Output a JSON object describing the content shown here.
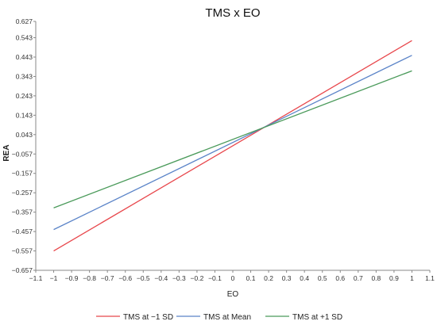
{
  "chart_data": {
    "type": "line",
    "title": "TMS x EO",
    "xlabel": "EO",
    "ylabel": "REA",
    "xlim": [
      -1.1,
      1.1
    ],
    "ylim": [
      -0.657,
      0.627
    ],
    "x_ticks": [
      -1.1,
      -1,
      -0.9,
      -0.8,
      -0.7,
      -0.6,
      -0.5,
      -0.4,
      -0.3,
      -0.2,
      -0.1,
      0,
      0.1,
      0.2,
      0.3,
      0.4,
      0.5,
      0.6,
      0.7,
      0.8,
      0.9,
      1,
      1.1
    ],
    "x_tick_labels": [
      "−1.1",
      "−1",
      "−0.9",
      "−0.8",
      "−0.7",
      "−0.6",
      "−0.5",
      "−0.4",
      "−0.3",
      "−0.2",
      "−0.1",
      "0",
      "0.1",
      "0.2",
      "0.3",
      "0.4",
      "0.5",
      "0.6",
      "0.7",
      "0.8",
      "0.9",
      "1",
      "1.1"
    ],
    "y_ticks": [
      0.627,
      0.543,
      0.443,
      0.343,
      0.243,
      0.143,
      0.043,
      -0.057,
      -0.157,
      -0.257,
      -0.357,
      -0.457,
      -0.557,
      -0.657
    ],
    "y_tick_labels": [
      "0.627",
      "0.543",
      "0.443",
      "0.343",
      "0.243",
      "0.143",
      "0.043",
      "−0.057",
      "−0.157",
      "−0.257",
      "−0.357",
      "−0.457",
      "−0.557",
      "−0.657"
    ],
    "grid": false,
    "legend_position": "bottom",
    "series": [
      {
        "name": "TMS at −1 SD",
        "color": "#e8474c",
        "x": [
          -1,
          1
        ],
        "y": [
          -0.557,
          0.528
        ]
      },
      {
        "name": "TMS at Mean",
        "color": "#5b84c8",
        "x": [
          -1,
          1
        ],
        "y": [
          -0.447,
          0.452
        ]
      },
      {
        "name": "TMS at +1 SD",
        "color": "#4a9a5a",
        "x": [
          -1,
          1
        ],
        "y": [
          -0.335,
          0.372
        ]
      }
    ]
  }
}
